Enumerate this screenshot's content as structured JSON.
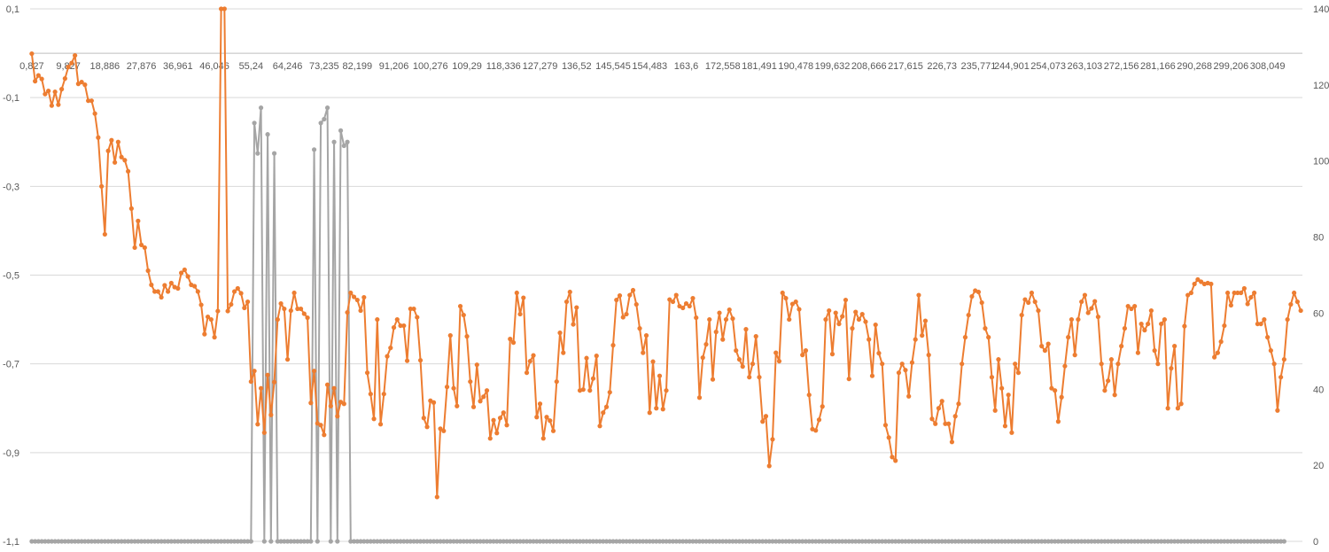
{
  "chart_data": {
    "type": "line",
    "title": "",
    "xlabel": "",
    "ylabel": "",
    "y_left": {
      "ylim": [
        -1.1,
        0.1
      ],
      "ticks": [
        0.1,
        -0.1,
        -0.3,
        -0.5,
        -0.7,
        -0.9,
        -1.1
      ],
      "tick_labels": [
        "0,1",
        "-0,1",
        "-0,3",
        "-0,5",
        "-0,7",
        "-0,9",
        "-1,1"
      ]
    },
    "y_right": {
      "ylim": [
        0,
        140
      ],
      "ticks": [
        140,
        120,
        100,
        80,
        60,
        40,
        20,
        0
      ],
      "tick_labels": [
        "140",
        "120",
        "100",
        "80",
        "60",
        "40",
        "20",
        "0"
      ]
    },
    "x_axis_position": "at y = 0 on left axis",
    "x_tick_labels": [
      "0,827",
      "9,827",
      "18,886",
      "27,876",
      "36,961",
      "46,046",
      "55,24",
      "64,246",
      "73,235",
      "82,199",
      "91,206",
      "100,276",
      "109,29",
      "118,336",
      "127,279",
      "136,52",
      "145,545",
      "154,483",
      "163,6",
      "172,558",
      "181,491",
      "190,478",
      "199,632",
      "208,666",
      "217,615",
      "226,73",
      "235,771",
      "244,901",
      "254,073",
      "263,103",
      "272,156",
      "281,166",
      "290,268",
      "299,206",
      "308,049"
    ],
    "grid": "horizontal",
    "legend": "none",
    "series": [
      {
        "axis": "left",
        "color": "#ed7d31",
        "values": [
          -0.001,
          -0.063,
          -0.05,
          -0.058,
          -0.092,
          -0.085,
          -0.118,
          -0.087,
          -0.116,
          -0.081,
          -0.057,
          -0.031,
          -0.022,
          -0.005,
          -0.069,
          -0.065,
          -0.071,
          -0.107,
          -0.107,
          -0.136,
          -0.19,
          -0.3,
          -0.408,
          -0.22,
          -0.196,
          -0.246,
          -0.2,
          -0.234,
          -0.241,
          -0.266,
          -0.35,
          -0.438,
          -0.378,
          -0.432,
          -0.438,
          -0.49,
          -0.522,
          -0.537,
          -0.537,
          -0.55,
          -0.523,
          -0.537,
          -0.518,
          -0.527,
          -0.53,
          -0.495,
          -0.488,
          -0.503,
          -0.522,
          -0.525,
          -0.537,
          -0.567,
          -0.633,
          -0.594,
          -0.6,
          -0.64,
          -0.581,
          0.1,
          0.1,
          -0.581,
          -0.566,
          -0.537,
          -0.53,
          -0.541,
          -0.574,
          -0.56,
          -0.74,
          -0.716,
          -0.836,
          -0.755,
          -0.855,
          -0.725,
          -0.815,
          -0.741,
          -0.6,
          -0.564,
          -0.576,
          -0.69,
          -0.58,
          -0.54,
          -0.576,
          -0.576,
          -0.587,
          -0.596,
          -0.788,
          -0.716,
          -0.834,
          -0.838,
          -0.86,
          -0.747,
          -0.795,
          -0.755,
          -0.818,
          -0.786,
          -0.79,
          -0.584,
          -0.54,
          -0.549,
          -0.556,
          -0.58,
          -0.55,
          -0.72,
          -0.768,
          -0.824,
          -0.6,
          -0.836,
          -0.768,
          -0.683,
          -0.664,
          -0.618,
          -0.6,
          -0.614,
          -0.614,
          -0.693,
          -0.576,
          -0.576,
          -0.595,
          -0.692,
          -0.822,
          -0.842,
          -0.783,
          -0.787,
          -1.0,
          -0.846,
          -0.851,
          -0.752,
          -0.636,
          -0.755,
          -0.795,
          -0.57,
          -0.59,
          -0.638,
          -0.74,
          -0.797,
          -0.702,
          -0.784,
          -0.774,
          -0.76,
          -0.868,
          -0.827,
          -0.856,
          -0.822,
          -0.81,
          -0.838,
          -0.644,
          -0.652,
          -0.54,
          -0.588,
          -0.551,
          -0.72,
          -0.694,
          -0.681,
          -0.82,
          -0.79,
          -0.868,
          -0.82,
          -0.828,
          -0.851,
          -0.74,
          -0.63,
          -0.675,
          -0.56,
          -0.538,
          -0.611,
          -0.573,
          -0.76,
          -0.758,
          -0.687,
          -0.76,
          -0.733,
          -0.682,
          -0.84,
          -0.81,
          -0.797,
          -0.764,
          -0.658,
          -0.556,
          -0.546,
          -0.595,
          -0.588,
          -0.545,
          -0.534,
          -0.566,
          -0.62,
          -0.675,
          -0.636,
          -0.81,
          -0.695,
          -0.8,
          -0.727,
          -0.802,
          -0.76,
          -0.555,
          -0.56,
          -0.545,
          -0.57,
          -0.574,
          -0.564,
          -0.57,
          -0.552,
          -0.596,
          -0.776,
          -0.686,
          -0.656,
          -0.6,
          -0.735,
          -0.628,
          -0.585,
          -0.645,
          -0.6,
          -0.578,
          -0.598,
          -0.67,
          -0.69,
          -0.706,
          -0.622,
          -0.73,
          -0.7,
          -0.638,
          -0.73,
          -0.83,
          -0.818,
          -0.93,
          -0.87,
          -0.675,
          -0.694,
          -0.54,
          -0.552,
          -0.6,
          -0.565,
          -0.56,
          -0.577,
          -0.68,
          -0.67,
          -0.77,
          -0.847,
          -0.85,
          -0.826,
          -0.796,
          -0.6,
          -0.58,
          -0.678,
          -0.585,
          -0.61,
          -0.593,
          -0.556,
          -0.734,
          -0.62,
          -0.583,
          -0.6,
          -0.588,
          -0.605,
          -0.645,
          -0.727,
          -0.612,
          -0.676,
          -0.7,
          -0.838,
          -0.866,
          -0.91,
          -0.918,
          -0.72,
          -0.7,
          -0.714,
          -0.773,
          -0.697,
          -0.645,
          -0.545,
          -0.636,
          -0.603,
          -0.68,
          -0.824,
          -0.835,
          -0.8,
          -0.784,
          -0.835,
          -0.835,
          -0.876,
          -0.818,
          -0.79,
          -0.7,
          -0.64,
          -0.59,
          -0.548,
          -0.535,
          -0.538,
          -0.562,
          -0.62,
          -0.64,
          -0.73,
          -0.805,
          -0.69,
          -0.755,
          -0.84,
          -0.77,
          -0.855,
          -0.7,
          -0.72,
          -0.59,
          -0.555,
          -0.562,
          -0.54,
          -0.56,
          -0.58,
          -0.66,
          -0.67,
          -0.655,
          -0.755,
          -0.76,
          -0.83,
          -0.775,
          -0.705,
          -0.64,
          -0.6,
          -0.68,
          -0.6,
          -0.56,
          -0.545,
          -0.585,
          -0.575,
          -0.559,
          -0.594,
          -0.7,
          -0.76,
          -0.738,
          -0.69,
          -0.77,
          -0.7,
          -0.66,
          -0.62,
          -0.57,
          -0.576,
          -0.57,
          -0.675,
          -0.61,
          -0.624,
          -0.61,
          -0.58,
          -0.67,
          -0.7,
          -0.61,
          -0.6,
          -0.8,
          -0.71,
          -0.66,
          -0.8,
          -0.79,
          -0.615,
          -0.545,
          -0.54,
          -0.52,
          -0.51,
          -0.515,
          -0.52,
          -0.518,
          -0.52,
          -0.685,
          -0.675,
          -0.65,
          -0.614,
          -0.54,
          -0.568,
          -0.54,
          -0.54,
          -0.54,
          -0.53,
          -0.565,
          -0.55,
          -0.54,
          -0.61,
          -0.61,
          -0.6,
          -0.64,
          -0.67,
          -0.7,
          -0.805,
          -0.73,
          -0.69,
          -0.6,
          -0.566,
          -0.54,
          -0.56,
          -0.58
        ]
      },
      {
        "axis": "right",
        "color": "#a5a5a5",
        "values": [
          0,
          0,
          0,
          0,
          0,
          0,
          0,
          0,
          0,
          0,
          0,
          0,
          0,
          0,
          0,
          0,
          0,
          0,
          0,
          0,
          0,
          0,
          0,
          0,
          0,
          0,
          0,
          0,
          0,
          0,
          0,
          0,
          0,
          0,
          0,
          0,
          0,
          0,
          0,
          0,
          0,
          0,
          0,
          0,
          0,
          0,
          0,
          0,
          0,
          0,
          0,
          0,
          0,
          0,
          0,
          0,
          0,
          0,
          0,
          0,
          0,
          0,
          0,
          0,
          0,
          0,
          0,
          110,
          102,
          114,
          0,
          107,
          0,
          102,
          0,
          0,
          0,
          0,
          0,
          0,
          0,
          0,
          0,
          0,
          0,
          103,
          0,
          110,
          111,
          114,
          0,
          105,
          0,
          108,
          104,
          105,
          0,
          0,
          0,
          0,
          0,
          0,
          0,
          0,
          0,
          0,
          0,
          0,
          0,
          0,
          0,
          0,
          0,
          0,
          0,
          0,
          0,
          0,
          0,
          0,
          0,
          0,
          0,
          0,
          0,
          0,
          0,
          0,
          0,
          0,
          0,
          0,
          0,
          0,
          0,
          0,
          0,
          0,
          0,
          0,
          0,
          0,
          0,
          0,
          0,
          0,
          0,
          0,
          0,
          0,
          0,
          0,
          0,
          0,
          0,
          0,
          0,
          0,
          0,
          0,
          0,
          0,
          0,
          0,
          0,
          0,
          0,
          0,
          0,
          0,
          0,
          0,
          0,
          0,
          0,
          0,
          0,
          0,
          0,
          0,
          0,
          0,
          0,
          0,
          0,
          0,
          0,
          0,
          0,
          0,
          0,
          0,
          0,
          0,
          0,
          0,
          0,
          0,
          0,
          0,
          0,
          0,
          0,
          0,
          0,
          0,
          0,
          0,
          0,
          0,
          0,
          0,
          0,
          0,
          0,
          0,
          0,
          0,
          0,
          0,
          0,
          0,
          0,
          0,
          0,
          0,
          0,
          0,
          0,
          0,
          0,
          0,
          0,
          0,
          0,
          0,
          0,
          0,
          0,
          0,
          0,
          0,
          0,
          0,
          0,
          0,
          0,
          0,
          0,
          0,
          0,
          0,
          0,
          0,
          0,
          0,
          0,
          0,
          0,
          0,
          0,
          0,
          0,
          0,
          0,
          0,
          0,
          0,
          0,
          0,
          0,
          0,
          0,
          0,
          0,
          0,
          0,
          0,
          0,
          0,
          0,
          0,
          0,
          0,
          0,
          0,
          0,
          0,
          0,
          0,
          0,
          0,
          0,
          0,
          0,
          0,
          0,
          0,
          0,
          0,
          0,
          0,
          0,
          0,
          0,
          0,
          0,
          0,
          0,
          0,
          0,
          0,
          0,
          0,
          0,
          0,
          0,
          0,
          0,
          0,
          0,
          0,
          0,
          0,
          0,
          0,
          0,
          0,
          0,
          0,
          0,
          0,
          0,
          0,
          0,
          0,
          0,
          0,
          0,
          0,
          0,
          0,
          0,
          0,
          0,
          0,
          0,
          0,
          0,
          0,
          0,
          0,
          0,
          0,
          0,
          0,
          0,
          0,
          0,
          0,
          0,
          0,
          0,
          0,
          0,
          0,
          0,
          0,
          0,
          0,
          0,
          0,
          0,
          0,
          0,
          0,
          0,
          0
        ]
      }
    ]
  }
}
